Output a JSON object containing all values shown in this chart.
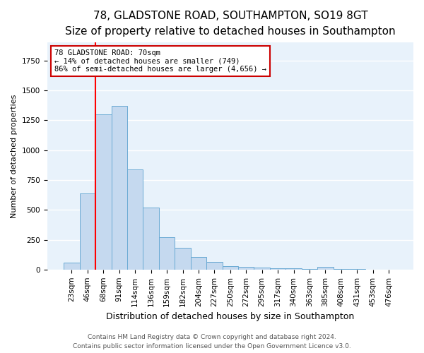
{
  "title1": "78, GLADSTONE ROAD, SOUTHAMPTON, SO19 8GT",
  "title2": "Size of property relative to detached houses in Southampton",
  "xlabel": "Distribution of detached houses by size in Southampton",
  "ylabel": "Number of detached properties",
  "categories": [
    "23sqm",
    "46sqm",
    "68sqm",
    "91sqm",
    "114sqm",
    "136sqm",
    "159sqm",
    "182sqm",
    "204sqm",
    "227sqm",
    "250sqm",
    "272sqm",
    "295sqm",
    "317sqm",
    "340sqm",
    "363sqm",
    "385sqm",
    "408sqm",
    "431sqm",
    "453sqm",
    "476sqm"
  ],
  "values": [
    60,
    640,
    1300,
    1370,
    840,
    520,
    270,
    185,
    105,
    65,
    30,
    25,
    15,
    10,
    8,
    5,
    20,
    3,
    2,
    1,
    1
  ],
  "bar_color": "#c5d9ef",
  "bar_edge_color": "#6aaad4",
  "background_color": "#e8f2fb",
  "grid_color": "#ffffff",
  "red_line_index": 2,
  "annotation_text": "78 GLADSTONE ROAD: 70sqm\n← 14% of detached houses are smaller (749)\n86% of semi-detached houses are larger (4,656) →",
  "annotation_box_color": "#ffffff",
  "annotation_box_edge": "#cc0000",
  "footnote1": "Contains HM Land Registry data © Crown copyright and database right 2024.",
  "footnote2": "Contains public sector information licensed under the Open Government Licence v3.0.",
  "ylim": [
    0,
    1900
  ],
  "title1_fontsize": 11,
  "title2_fontsize": 9.5,
  "xlabel_fontsize": 9,
  "ylabel_fontsize": 8,
  "tick_fontsize": 7.5,
  "footnote_fontsize": 6.5
}
